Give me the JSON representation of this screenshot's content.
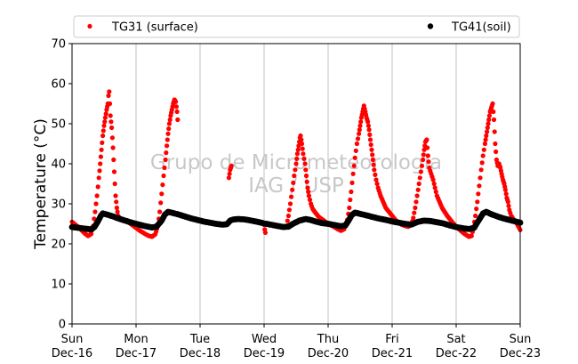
{
  "chart_data": {
    "type": "scatter",
    "ylabel": "Temperature (°C)",
    "xlabel": "",
    "ylim": [
      0,
      70
    ],
    "yticks": [
      0,
      10,
      20,
      30,
      40,
      50,
      60,
      70
    ],
    "xlim": [
      0,
      7
    ],
    "x_unit": "days since Sun Dec-16 00:00",
    "xticks": [
      {
        "day": "Sun",
        "date": "Dec-16"
      },
      {
        "day": "Mon",
        "date": "Dec-17"
      },
      {
        "day": "Tue",
        "date": "Dec-18"
      },
      {
        "day": "Wed",
        "date": "Dec-19"
      },
      {
        "day": "Thu",
        "date": "Dec-20"
      },
      {
        "day": "Fri",
        "date": "Dec-21"
      },
      {
        "day": "Sat",
        "date": "Dec-22"
      },
      {
        "day": "Sun",
        "date": "Dec-23"
      }
    ],
    "grid": "vertical",
    "legend_position": "top",
    "watermark": [
      "Grupo de Micrometeorologia",
      "IAG / USP"
    ],
    "series": [
      {
        "name": "TG31 (surface)",
        "color": "#ff0000",
        "points": [
          [
            0.0,
            25.5
          ],
          [
            0.05,
            24.8
          ],
          [
            0.1,
            24.2
          ],
          [
            0.15,
            23.4
          ],
          [
            0.2,
            22.6
          ],
          [
            0.25,
            22.0
          ],
          [
            0.3,
            22.5
          ],
          [
            0.33,
            24.5
          ],
          [
            0.36,
            28.0
          ],
          [
            0.39,
            32.0
          ],
          [
            0.42,
            36.5
          ],
          [
            0.44,
            40.0
          ],
          [
            0.46,
            43.5
          ],
          [
            0.48,
            47.0
          ],
          [
            0.5,
            49.5
          ],
          [
            0.52,
            51.5
          ],
          [
            0.54,
            53.5
          ],
          [
            0.56,
            55.0
          ],
          [
            0.57,
            57.0
          ],
          [
            0.58,
            58.0
          ],
          [
            0.59,
            55.0
          ],
          [
            0.6,
            52.0
          ],
          [
            0.62,
            49.0
          ],
          [
            0.64,
            44.0
          ],
          [
            0.66,
            38.0
          ],
          [
            0.68,
            32.0
          ],
          [
            0.7,
            29.0
          ],
          [
            0.72,
            27.0
          ],
          [
            0.75,
            26.3
          ],
          [
            0.8,
            26.0
          ],
          [
            0.85,
            25.8
          ],
          [
            0.9,
            25.2
          ],
          [
            0.95,
            24.6
          ],
          [
            1.0,
            24.0
          ],
          [
            1.05,
            23.4
          ],
          [
            1.1,
            22.9
          ],
          [
            1.15,
            22.4
          ],
          [
            1.2,
            22.0
          ],
          [
            1.25,
            21.8
          ],
          [
            1.3,
            22.4
          ],
          [
            1.34,
            24.5
          ],
          [
            1.37,
            28.0
          ],
          [
            1.4,
            32.5
          ],
          [
            1.43,
            37.0
          ],
          [
            1.46,
            41.0
          ],
          [
            1.48,
            44.5
          ],
          [
            1.5,
            47.5
          ],
          [
            1.52,
            50.0
          ],
          [
            1.54,
            52.0
          ],
          [
            1.56,
            53.5
          ],
          [
            1.58,
            55.0
          ],
          [
            1.6,
            56.0
          ],
          [
            1.62,
            55.5
          ],
          [
            1.64,
            53.0
          ],
          [
            1.65,
            51.0
          ],
          [
            2.45,
            36.5
          ],
          [
            2.47,
            38.5
          ],
          [
            2.49,
            39.5
          ],
          [
            3.0,
            24.8
          ],
          [
            3.01,
            23.6
          ],
          [
            3.02,
            22.8
          ],
          [
            3.35,
            24.5
          ],
          [
            3.38,
            27.0
          ],
          [
            3.41,
            30.0
          ],
          [
            3.44,
            33.5
          ],
          [
            3.47,
            37.0
          ],
          [
            3.5,
            40.0
          ],
          [
            3.52,
            42.5
          ],
          [
            3.54,
            44.5
          ],
          [
            3.56,
            46.5
          ],
          [
            3.57,
            47.0
          ],
          [
            3.59,
            45.0
          ],
          [
            3.61,
            42.5
          ],
          [
            3.64,
            40.0
          ],
          [
            3.66,
            37.0
          ],
          [
            3.68,
            34.0
          ],
          [
            3.7,
            32.0
          ],
          [
            3.73,
            30.0
          ],
          [
            3.76,
            28.7
          ],
          [
            3.8,
            27.8
          ],
          [
            3.85,
            26.8
          ],
          [
            3.9,
            26.2
          ],
          [
            3.95,
            25.6
          ],
          [
            4.0,
            25.0
          ],
          [
            4.05,
            24.6
          ],
          [
            4.1,
            24.2
          ],
          [
            4.15,
            23.7
          ],
          [
            4.2,
            23.3
          ],
          [
            4.25,
            23.7
          ],
          [
            4.3,
            26.0
          ],
          [
            4.33,
            29.0
          ],
          [
            4.36,
            33.0
          ],
          [
            4.39,
            37.5
          ],
          [
            4.42,
            41.5
          ],
          [
            4.45,
            45.0
          ],
          [
            4.48,
            47.5
          ],
          [
            4.5,
            49.5
          ],
          [
            4.52,
            51.5
          ],
          [
            4.54,
            53.0
          ],
          [
            4.56,
            54.5
          ],
          [
            4.58,
            53.0
          ],
          [
            4.6,
            51.5
          ],
          [
            4.62,
            50.5
          ],
          [
            4.64,
            48.5
          ],
          [
            4.66,
            46.0
          ],
          [
            4.68,
            43.5
          ],
          [
            4.7,
            41.0
          ],
          [
            4.72,
            38.5
          ],
          [
            4.75,
            36.0
          ],
          [
            4.78,
            34.0
          ],
          [
            4.82,
            32.0
          ],
          [
            4.86,
            30.5
          ],
          [
            4.9,
            29.0
          ],
          [
            4.95,
            28.0
          ],
          [
            5.0,
            27.0
          ],
          [
            5.05,
            26.0
          ],
          [
            5.1,
            25.3
          ],
          [
            5.15,
            24.8
          ],
          [
            5.2,
            24.5
          ],
          [
            5.25,
            24.3
          ],
          [
            5.3,
            24.8
          ],
          [
            5.33,
            26.5
          ],
          [
            5.36,
            29.0
          ],
          [
            5.39,
            32.0
          ],
          [
            5.42,
            35.0
          ],
          [
            5.45,
            38.0
          ],
          [
            5.48,
            41.0
          ],
          [
            5.5,
            43.5
          ],
          [
            5.52,
            45.5
          ],
          [
            5.54,
            46.0
          ],
          [
            5.56,
            42.0
          ],
          [
            5.58,
            39.0
          ],
          [
            5.61,
            37.5
          ],
          [
            5.64,
            36.0
          ],
          [
            5.67,
            34.0
          ],
          [
            5.7,
            32.0
          ],
          [
            5.74,
            30.5
          ],
          [
            5.78,
            29.0
          ],
          [
            5.82,
            28.0
          ],
          [
            5.86,
            27.0
          ],
          [
            5.9,
            26.2
          ],
          [
            5.95,
            25.2
          ],
          [
            6.0,
            24.3
          ],
          [
            6.05,
            23.6
          ],
          [
            6.1,
            22.9
          ],
          [
            6.15,
            22.3
          ],
          [
            6.2,
            21.8
          ],
          [
            6.24,
            22.0
          ],
          [
            6.27,
            24.0
          ],
          [
            6.3,
            27.0
          ],
          [
            6.33,
            30.5
          ],
          [
            6.36,
            34.5
          ],
          [
            6.39,
            38.5
          ],
          [
            6.42,
            42.0
          ],
          [
            6.45,
            45.0
          ],
          [
            6.47,
            47.0
          ],
          [
            6.49,
            49.0
          ],
          [
            6.51,
            51.0
          ],
          [
            6.53,
            53.0
          ],
          [
            6.55,
            54.0
          ],
          [
            6.57,
            55.0
          ],
          [
            6.59,
            51.0
          ],
          [
            6.61,
            45.0
          ],
          [
            6.63,
            41.0
          ],
          [
            6.65,
            39.5
          ],
          [
            6.67,
            40.0
          ],
          [
            6.69,
            39.0
          ],
          [
            6.71,
            37.5
          ],
          [
            6.73,
            36.0
          ],
          [
            6.75,
            35.0
          ],
          [
            6.77,
            33.5
          ],
          [
            6.79,
            31.5
          ],
          [
            6.81,
            30.5
          ],
          [
            6.83,
            28.5
          ],
          [
            6.86,
            27.0
          ],
          [
            6.9,
            26.0
          ],
          [
            6.95,
            25.0
          ],
          [
            7.0,
            23.5
          ]
        ]
      },
      {
        "name": "TG41(soil)",
        "color": "#000000",
        "points": [
          [
            0.0,
            24.2
          ],
          [
            0.1,
            24.0
          ],
          [
            0.2,
            23.8
          ],
          [
            0.3,
            23.6
          ],
          [
            0.35,
            24.2
          ],
          [
            0.4,
            25.5
          ],
          [
            0.45,
            27.0
          ],
          [
            0.48,
            27.6
          ],
          [
            0.55,
            27.3
          ],
          [
            0.65,
            26.8
          ],
          [
            0.75,
            26.2
          ],
          [
            0.85,
            25.7
          ],
          [
            0.95,
            25.2
          ],
          [
            1.05,
            24.8
          ],
          [
            1.15,
            24.4
          ],
          [
            1.25,
            24.1
          ],
          [
            1.32,
            24.3
          ],
          [
            1.4,
            25.8
          ],
          [
            1.45,
            27.3
          ],
          [
            1.5,
            28.0
          ],
          [
            1.55,
            27.8
          ],
          [
            1.65,
            27.4
          ],
          [
            1.75,
            26.9
          ],
          [
            1.85,
            26.4
          ],
          [
            1.95,
            26.0
          ],
          [
            2.05,
            25.6
          ],
          [
            2.15,
            25.3
          ],
          [
            2.25,
            25.0
          ],
          [
            2.35,
            24.8
          ],
          [
            2.42,
            24.9
          ],
          [
            2.47,
            25.8
          ],
          [
            2.52,
            26.1
          ],
          [
            2.6,
            26.2
          ],
          [
            2.7,
            26.1
          ],
          [
            2.8,
            25.8
          ],
          [
            2.9,
            25.5
          ],
          [
            3.0,
            25.1
          ],
          [
            3.1,
            24.8
          ],
          [
            3.2,
            24.5
          ],
          [
            3.3,
            24.2
          ],
          [
            3.38,
            24.3
          ],
          [
            3.45,
            25.0
          ],
          [
            3.55,
            25.8
          ],
          [
            3.65,
            26.2
          ],
          [
            3.72,
            26.0
          ],
          [
            3.8,
            25.6
          ],
          [
            3.9,
            25.2
          ],
          [
            4.0,
            25.0
          ],
          [
            4.1,
            24.7
          ],
          [
            4.2,
            24.4
          ],
          [
            4.27,
            24.6
          ],
          [
            4.32,
            25.8
          ],
          [
            4.37,
            27.2
          ],
          [
            4.42,
            27.8
          ],
          [
            4.5,
            27.5
          ],
          [
            4.6,
            27.1
          ],
          [
            4.7,
            26.7
          ],
          [
            4.8,
            26.3
          ],
          [
            4.9,
            26.0
          ],
          [
            5.0,
            25.6
          ],
          [
            5.1,
            25.3
          ],
          [
            5.2,
            25.0
          ],
          [
            5.3,
            24.8
          ],
          [
            5.4,
            25.5
          ],
          [
            5.5,
            25.8
          ],
          [
            5.6,
            25.7
          ],
          [
            5.7,
            25.4
          ],
          [
            5.8,
            25.1
          ],
          [
            5.9,
            24.6
          ],
          [
            6.0,
            24.2
          ],
          [
            6.1,
            23.9
          ],
          [
            6.2,
            23.7
          ],
          [
            6.28,
            24.0
          ],
          [
            6.35,
            25.8
          ],
          [
            6.42,
            27.6
          ],
          [
            6.47,
            28.0
          ],
          [
            6.55,
            27.4
          ],
          [
            6.65,
            26.8
          ],
          [
            6.75,
            26.3
          ],
          [
            6.85,
            25.9
          ],
          [
            6.95,
            25.5
          ],
          [
            7.0,
            25.3
          ]
        ]
      }
    ]
  }
}
